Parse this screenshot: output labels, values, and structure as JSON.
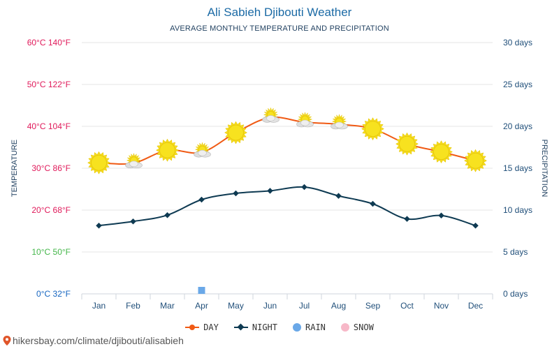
{
  "chart_data": {
    "type": "line",
    "title": "Ali Sabieh Djibouti Weather",
    "subtitle": "AVERAGE MONTHLY TEMPERATURE AND PRECIPITATION",
    "ylabel_left": "TEMPERATURE",
    "ylabel_right": "PRECIPITATION",
    "categories": [
      "Jan",
      "Feb",
      "Mar",
      "Apr",
      "May",
      "Jun",
      "Jul",
      "Aug",
      "Sep",
      "Oct",
      "Nov",
      "Dec"
    ],
    "left_ticks": [
      {
        "value": 0,
        "label": "0°C 32°F",
        "color": "#1565c0"
      },
      {
        "value": 10,
        "label": "10°C 50°F",
        "color": "#43b649"
      },
      {
        "value": 20,
        "label": "20°C 68°F",
        "color": "#e0195a"
      },
      {
        "value": 30,
        "label": "30°C 86°F",
        "color": "#e0195a"
      },
      {
        "value": 40,
        "label": "40°C 104°F",
        "color": "#e0195a"
      },
      {
        "value": 50,
        "label": "50°C 122°F",
        "color": "#e0195a"
      },
      {
        "value": 60,
        "label": "60°C 140°F",
        "color": "#e0195a"
      }
    ],
    "right_ticks": [
      {
        "value": 0,
        "label": "0 days"
      },
      {
        "value": 5,
        "label": "5 days"
      },
      {
        "value": 10,
        "label": "10 days"
      },
      {
        "value": 15,
        "label": "15 days"
      },
      {
        "value": 20,
        "label": "20 days"
      },
      {
        "value": 25,
        "label": "25 days"
      },
      {
        "value": 30,
        "label": "30 days"
      }
    ],
    "ylim": [
      0,
      60
    ],
    "y2lim": [
      0,
      30
    ],
    "series": [
      {
        "name": "DAY",
        "color": "#f05a14",
        "values": [
          31.3,
          31.2,
          34.3,
          33.8,
          38.5,
          42.1,
          41.0,
          40.5,
          39.4,
          35.8,
          33.9,
          31.8
        ],
        "icons": [
          "sun",
          "partly-cloudy",
          "sun",
          "partly-cloudy",
          "sun",
          "partly-cloudy",
          "partly-cloudy",
          "partly-cloudy",
          "sun",
          "sun",
          "sun",
          "sun"
        ]
      },
      {
        "name": "NIGHT",
        "color": "#0e3a52",
        "values": [
          16.3,
          17.3,
          18.8,
          22.5,
          24.0,
          24.6,
          25.5,
          23.4,
          21.5,
          17.9,
          18.7,
          16.3
        ]
      },
      {
        "name": "RAIN",
        "color": "#6aa8e8",
        "axis": "right",
        "values": [
          0,
          0,
          0,
          0.5,
          0,
          0,
          0,
          0,
          0,
          0,
          0,
          0
        ]
      },
      {
        "name": "SNOW",
        "color": "#f7b8c8",
        "axis": "right",
        "values": [
          0,
          0,
          0,
          0,
          0,
          0,
          0,
          0,
          0,
          0,
          0,
          0
        ]
      }
    ]
  },
  "legend": {
    "day": "DAY",
    "night": "NIGHT",
    "rain": "RAIN",
    "snow": "SNOW"
  },
  "footer": {
    "url": "hikersbay.com/climate/djibouti/alisabieh"
  }
}
